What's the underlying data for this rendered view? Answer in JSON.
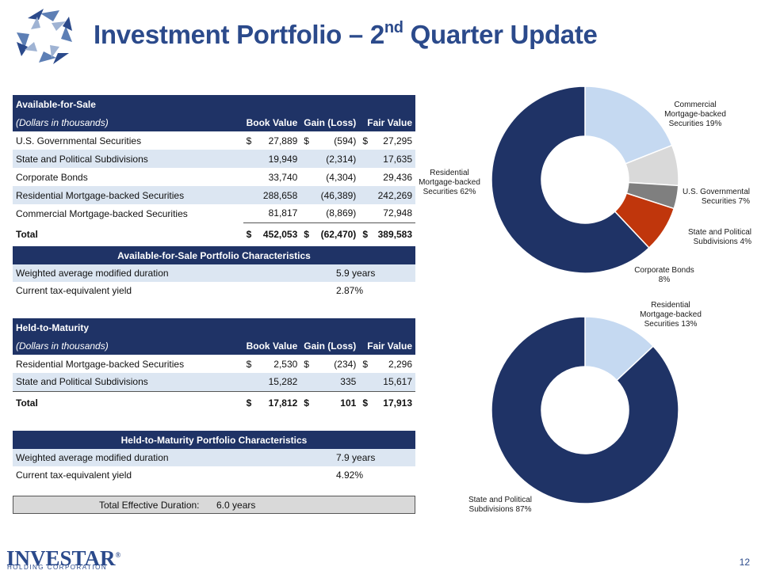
{
  "title": {
    "main": "Investment Portfolio – 2",
    "sup": "nd",
    "rest": " Quarter Update"
  },
  "colors": {
    "navy": "#1f3366",
    "light_blue": "#c5d9f1",
    "light_gray": "#d9d9d9",
    "dark_gray": "#7f7f7f",
    "red": "#c0360c",
    "brand": "#2b4a8b"
  },
  "afs": {
    "title": "Available-for-Sale",
    "subtitle": "(Dollars in thousands)",
    "headers": [
      "Book Value",
      "Gain (Loss)",
      "Fair Value"
    ],
    "rows": [
      {
        "label": "U.S. Governmental Securities",
        "c1": "$",
        "book": "27,889",
        "c2": "$",
        "gain": "(594)",
        "c3": "$",
        "fair": "27,295"
      },
      {
        "label": "State and Political Subdivisions",
        "c1": "",
        "book": "19,949",
        "c2": "",
        "gain": "(2,314)",
        "c3": "",
        "fair": "17,635"
      },
      {
        "label": "Corporate Bonds",
        "c1": "",
        "book": "33,740",
        "c2": "",
        "gain": "(4,304)",
        "c3": "",
        "fair": "29,436"
      },
      {
        "label": "Residential Mortgage-backed Securities",
        "c1": "",
        "book": "288,658",
        "c2": "",
        "gain": "(46,389)",
        "c3": "",
        "fair": "242,269"
      },
      {
        "label": "Commercial Mortgage-backed Securities",
        "c1": "",
        "book": "81,817",
        "c2": "",
        "gain": "(8,869)",
        "c3": "",
        "fair": "72,948"
      }
    ],
    "total": {
      "label": "Total",
      "c1": "$",
      "book": "452,053",
      "c2": "$",
      "gain": "(62,470)",
      "c3": "$",
      "fair": "389,583"
    }
  },
  "afs_characteristics": {
    "title": "Available-for-Sale Portfolio Characteristics",
    "rows": [
      {
        "label": "Weighted average modified duration",
        "value": "5.9 years"
      },
      {
        "label": "Current tax-equivalent yield",
        "value": "2.87%"
      }
    ]
  },
  "htm": {
    "title": "Held-to-Maturity",
    "subtitle": "(Dollars in thousands)",
    "headers": [
      "Book Value",
      "Gain (Loss)",
      "Fair Value"
    ],
    "rows": [
      {
        "label": "Residential Mortgage-backed Securities",
        "c1": "$",
        "book": "2,530",
        "c2": "$",
        "gain": "(234)",
        "c3": "$",
        "fair": "2,296"
      },
      {
        "label": "State and Political Subdivisions",
        "c1": "",
        "book": "15,282",
        "c2": "",
        "gain": "335",
        "c3": "",
        "fair": "15,617"
      }
    ],
    "total": {
      "label": "Total",
      "c1": "$",
      "book": "17,812",
      "c2": "$",
      "gain": "101",
      "c3": "$",
      "fair": "17,913"
    }
  },
  "htm_characteristics": {
    "title": "Held-to-Maturity Portfolio Characteristics",
    "rows": [
      {
        "label": "Weighted average modified duration",
        "value": "7.9 years"
      },
      {
        "label": "Current tax-equivalent yield",
        "value": "4.92%"
      }
    ]
  },
  "total_duration": {
    "label": "Total Effective Duration:",
    "value": "6.0 years"
  },
  "chart_data": [
    {
      "type": "pie",
      "variant": "donut",
      "title": "",
      "slices": [
        {
          "name": "Commercial Mortgage-backed Securities",
          "value": 19,
          "label_lines": [
            "Commercial",
            "Mortgage-backed",
            "Securities 19%"
          ],
          "color": "#c5d9f1"
        },
        {
          "name": "U.S. Governmental Securities",
          "value": 7,
          "label_lines": [
            "U.S. Governmental",
            "Securities 7%"
          ],
          "color": "#d9d9d9"
        },
        {
          "name": "State and Political Subdivisions",
          "value": 4,
          "label_lines": [
            "State and Political",
            "Subdivisions 4%"
          ],
          "color": "#7f7f7f"
        },
        {
          "name": "Corporate Bonds",
          "value": 8,
          "label_lines": [
            "Corporate Bonds",
            "8%"
          ],
          "color": "#c0360c"
        },
        {
          "name": "Residential Mortgage-backed Securities",
          "value": 62,
          "label_lines": [
            "Residential",
            "Mortgage-backed",
            "Securities 62%"
          ],
          "color": "#1f3366"
        }
      ]
    },
    {
      "type": "pie",
      "variant": "donut",
      "title": "",
      "slices": [
        {
          "name": "Residential Mortgage-backed Securities",
          "value": 13,
          "label_lines": [
            "Residential",
            "Mortgage-backed",
            "Securities 13%"
          ],
          "color": "#c5d9f1"
        },
        {
          "name": "State and Political Subdivisions",
          "value": 87,
          "label_lines": [
            "State and Political",
            "Subdivisions 87%"
          ],
          "color": "#1f3366"
        }
      ]
    }
  ],
  "footer": {
    "brand": "INVESTAR",
    "brand_sub": "HOLDING CORPORATION",
    "registered": "®",
    "page_number": "12"
  }
}
